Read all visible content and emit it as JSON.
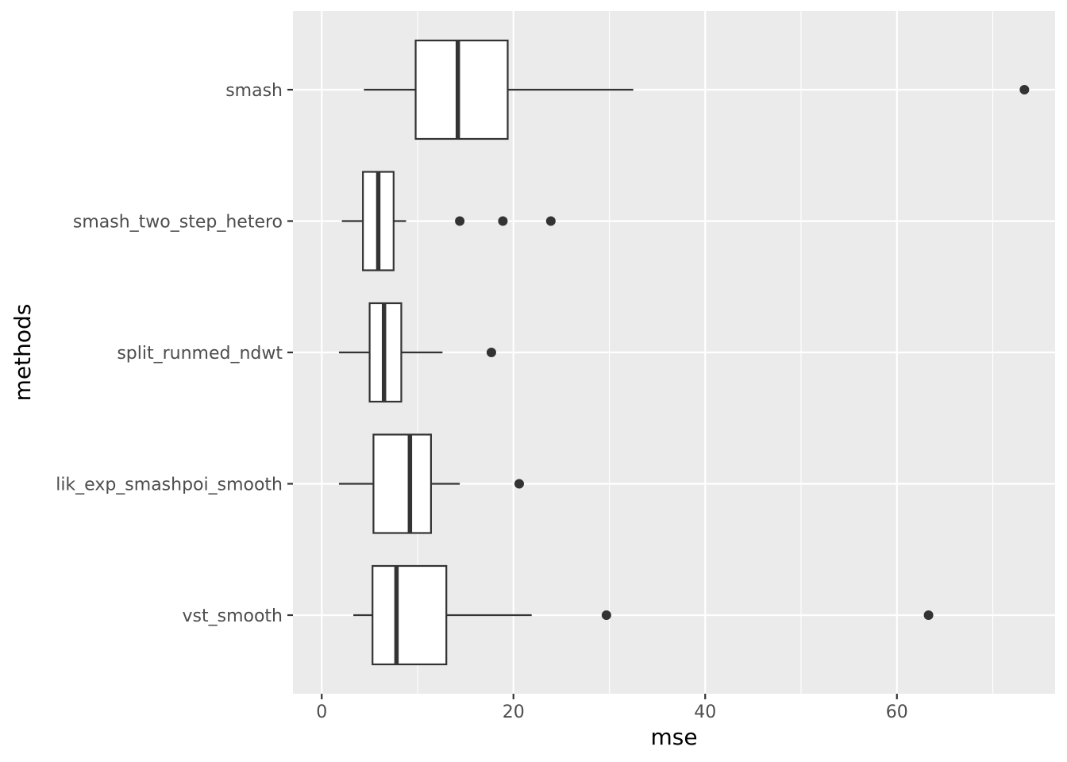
{
  "chart_data": {
    "type": "boxplot",
    "orientation": "horizontal",
    "xlabel": "mse",
    "ylabel": "methods",
    "xlim": [
      -3,
      76.5
    ],
    "x_ticks": [
      0,
      20,
      40,
      60
    ],
    "x_minor_ticks": [
      10,
      30,
      50,
      70
    ],
    "grid": true,
    "colors": {
      "panel_background": "#ebebeb",
      "grid": "#ffffff",
      "box_fill": "#ffffff",
      "box_line": "#333333",
      "outlier": "#333333",
      "tick_text": "#4d4d4d",
      "axis_title": "#000000"
    },
    "categories": [
      "smash",
      "smash_two_step_hetero",
      "split_runmed_ndwt",
      "lik_exp_smashpoi_smooth",
      "vst_smooth"
    ],
    "boxes": [
      {
        "category": "smash",
        "whisker_low": 4.4,
        "q1": 9.8,
        "median": 14.2,
        "q3": 19.4,
        "whisker_high": 32.5,
        "outliers": [
          73.3
        ]
      },
      {
        "category": "smash_two_step_hetero",
        "whisker_low": 2.1,
        "q1": 4.3,
        "median": 5.9,
        "q3": 7.5,
        "whisker_high": 8.8,
        "outliers": [
          14.4,
          18.9,
          23.9
        ]
      },
      {
        "category": "split_runmed_ndwt",
        "whisker_low": 1.8,
        "q1": 5.0,
        "median": 6.5,
        "q3": 8.3,
        "whisker_high": 12.6,
        "outliers": [
          17.7
        ]
      },
      {
        "category": "lik_exp_smashpoi_smooth",
        "whisker_low": 1.8,
        "q1": 5.4,
        "median": 9.2,
        "q3": 11.4,
        "whisker_high": 14.4,
        "outliers": [
          20.6
        ]
      },
      {
        "category": "vst_smooth",
        "whisker_low": 3.3,
        "q1": 5.3,
        "median": 7.8,
        "q3": 13.0,
        "whisker_high": 21.9,
        "outliers": [
          29.7,
          63.3
        ]
      }
    ]
  }
}
